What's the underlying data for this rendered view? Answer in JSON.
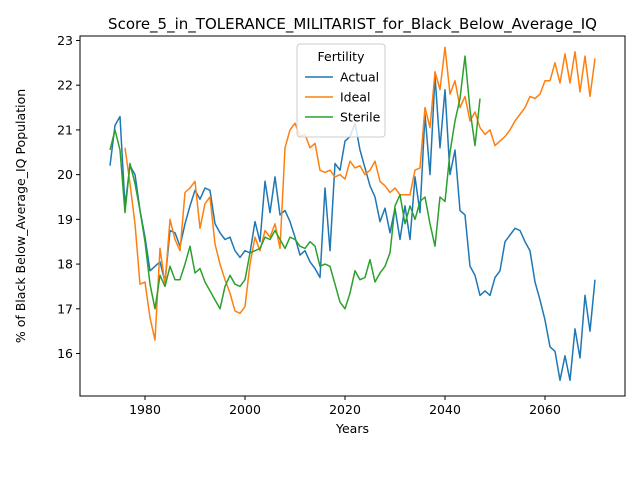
{
  "chart_data": {
    "type": "line",
    "title": "Score_5_in_TOLERANCE_MILITARIST_for_Black_Below_Average_IQ",
    "xlabel": "Years",
    "ylabel": "% of Black Below_Average_IQ Population",
    "xlim": [
      1967,
      2076
    ],
    "ylim": [
      15.05,
      23.1
    ],
    "xticks": [
      1980,
      2000,
      2020,
      2040,
      2060
    ],
    "yticks": [
      16,
      17,
      18,
      19,
      20,
      21,
      22,
      23
    ],
    "grid": false,
    "legend": {
      "title": "Fertility",
      "placement": "upper center"
    },
    "series": [
      {
        "name": "Actual",
        "color": "#1f77b4",
        "points": [
          [
            1973,
            20.2
          ],
          [
            1974,
            21.1
          ],
          [
            1975,
            21.3
          ],
          [
            1976,
            19.3
          ],
          [
            1977,
            20.2
          ],
          [
            1978,
            20.0
          ],
          [
            1979,
            19.2
          ],
          [
            1980,
            18.6
          ],
          [
            1981,
            17.85
          ],
          [
            1982,
            17.95
          ],
          [
            1983,
            18.05
          ],
          [
            1984,
            17.6
          ],
          [
            1985,
            18.75
          ],
          [
            1986,
            18.7
          ],
          [
            1987,
            18.4
          ],
          [
            1988,
            18.9
          ],
          [
            1989,
            19.3
          ],
          [
            1990,
            19.65
          ],
          [
            1991,
            19.45
          ],
          [
            1992,
            19.7
          ],
          [
            1993,
            19.65
          ],
          [
            1994,
            18.9
          ],
          [
            1995,
            18.7
          ],
          [
            1996,
            18.55
          ],
          [
            1997,
            18.6
          ],
          [
            1998,
            18.3
          ],
          [
            1999,
            18.15
          ],
          [
            2000,
            18.3
          ],
          [
            2001,
            18.25
          ],
          [
            2002,
            18.95
          ],
          [
            2003,
            18.5
          ],
          [
            2004,
            19.85
          ],
          [
            2005,
            19.15
          ],
          [
            2006,
            19.95
          ],
          [
            2007,
            19.1
          ],
          [
            2008,
            19.2
          ],
          [
            2009,
            18.95
          ],
          [
            2010,
            18.6
          ],
          [
            2011,
            18.2
          ],
          [
            2012,
            18.3
          ],
          [
            2013,
            18.05
          ],
          [
            2014,
            17.9
          ],
          [
            2015,
            17.7
          ],
          [
            2016,
            19.7
          ],
          [
            2017,
            18.3
          ],
          [
            2018,
            20.25
          ],
          [
            2019,
            20.1
          ],
          [
            2020,
            20.75
          ],
          [
            2021,
            20.85
          ],
          [
            2022,
            21.15
          ],
          [
            2023,
            20.55
          ],
          [
            2024,
            20.15
          ],
          [
            2025,
            19.75
          ],
          [
            2026,
            19.5
          ],
          [
            2027,
            18.95
          ],
          [
            2028,
            19.25
          ],
          [
            2029,
            18.7
          ],
          [
            2030,
            19.25
          ],
          [
            2031,
            18.55
          ],
          [
            2032,
            19.3
          ],
          [
            2033,
            18.55
          ],
          [
            2034,
            19.95
          ],
          [
            2035,
            19.15
          ],
          [
            2036,
            21.35
          ],
          [
            2037,
            20.0
          ],
          [
            2038,
            22.2
          ],
          [
            2039,
            20.6
          ],
          [
            2040,
            21.9
          ],
          [
            2041,
            20.0
          ],
          [
            2042,
            20.55
          ],
          [
            2043,
            19.2
          ],
          [
            2044,
            19.1
          ],
          [
            2045,
            17.95
          ],
          [
            2046,
            17.75
          ],
          [
            2047,
            17.3
          ],
          [
            2048,
            17.4
          ],
          [
            2049,
            17.3
          ],
          [
            2050,
            17.7
          ],
          [
            2051,
            17.85
          ],
          [
            2052,
            18.5
          ],
          [
            2053,
            18.65
          ],
          [
            2054,
            18.8
          ],
          [
            2055,
            18.75
          ],
          [
            2056,
            18.5
          ],
          [
            2057,
            18.3
          ],
          [
            2058,
            17.6
          ],
          [
            2059,
            17.2
          ],
          [
            2060,
            16.75
          ],
          [
            2061,
            16.15
          ],
          [
            2062,
            16.05
          ],
          [
            2063,
            15.4
          ],
          [
            2064,
            15.95
          ],
          [
            2065,
            15.4
          ],
          [
            2066,
            16.55
          ],
          [
            2067,
            15.9
          ],
          [
            2068,
            17.3
          ],
          [
            2069,
            16.5
          ],
          [
            2070,
            17.65
          ]
        ]
      },
      {
        "name": "Ideal",
        "color": "#ff7f0e",
        "points": [
          [
            1976,
            20.6
          ],
          [
            1977,
            19.8
          ],
          [
            1978,
            18.9
          ],
          [
            1979,
            17.55
          ],
          [
            1980,
            17.6
          ],
          [
            1981,
            16.8
          ],
          [
            1982,
            16.3
          ],
          [
            1983,
            18.35
          ],
          [
            1984,
            17.55
          ],
          [
            1985,
            19.0
          ],
          [
            1986,
            18.55
          ],
          [
            1987,
            18.3
          ],
          [
            1988,
            19.6
          ],
          [
            1989,
            19.7
          ],
          [
            1990,
            19.85
          ],
          [
            1991,
            18.8
          ],
          [
            1992,
            19.35
          ],
          [
            1993,
            19.5
          ],
          [
            1994,
            18.45
          ],
          [
            1995,
            18.0
          ],
          [
            1996,
            17.65
          ],
          [
            1997,
            17.35
          ],
          [
            1998,
            16.95
          ],
          [
            1999,
            16.9
          ],
          [
            2000,
            17.05
          ],
          [
            2001,
            18.0
          ],
          [
            2002,
            18.6
          ],
          [
            2003,
            18.3
          ],
          [
            2004,
            18.75
          ],
          [
            2005,
            18.6
          ],
          [
            2006,
            18.9
          ],
          [
            2007,
            18.35
          ],
          [
            2008,
            20.6
          ],
          [
            2009,
            21.0
          ],
          [
            2010,
            21.15
          ],
          [
            2011,
            20.85
          ],
          [
            2012,
            20.9
          ],
          [
            2013,
            20.6
          ],
          [
            2014,
            20.7
          ],
          [
            2015,
            20.1
          ],
          [
            2016,
            20.05
          ],
          [
            2017,
            20.1
          ],
          [
            2018,
            19.95
          ],
          [
            2019,
            20.0
          ],
          [
            2020,
            19.9
          ],
          [
            2021,
            20.3
          ],
          [
            2022,
            20.15
          ],
          [
            2023,
            20.2
          ],
          [
            2024,
            20.0
          ],
          [
            2025,
            20.1
          ],
          [
            2026,
            20.3
          ],
          [
            2027,
            19.85
          ],
          [
            2028,
            19.75
          ],
          [
            2029,
            19.6
          ],
          [
            2030,
            19.7
          ],
          [
            2031,
            19.55
          ],
          [
            2032,
            19.55
          ],
          [
            2033,
            19.55
          ],
          [
            2034,
            20.1
          ],
          [
            2035,
            20.15
          ],
          [
            2036,
            21.5
          ],
          [
            2037,
            21.05
          ],
          [
            2038,
            22.3
          ],
          [
            2039,
            21.9
          ],
          [
            2040,
            22.85
          ],
          [
            2041,
            21.8
          ],
          [
            2042,
            22.1
          ],
          [
            2043,
            21.5
          ],
          [
            2044,
            21.75
          ],
          [
            2045,
            21.2
          ],
          [
            2046,
            21.4
          ],
          [
            2047,
            21.05
          ],
          [
            2048,
            20.9
          ],
          [
            2049,
            21.0
          ],
          [
            2050,
            20.65
          ],
          [
            2051,
            20.75
          ],
          [
            2052,
            20.85
          ],
          [
            2053,
            21.0
          ],
          [
            2054,
            21.2
          ],
          [
            2055,
            21.35
          ],
          [
            2056,
            21.5
          ],
          [
            2057,
            21.75
          ],
          [
            2058,
            21.7
          ],
          [
            2059,
            21.8
          ],
          [
            2060,
            22.1
          ],
          [
            2061,
            22.1
          ],
          [
            2062,
            22.5
          ],
          [
            2063,
            22.05
          ],
          [
            2064,
            22.7
          ],
          [
            2065,
            22.05
          ],
          [
            2066,
            22.75
          ],
          [
            2067,
            21.85
          ],
          [
            2068,
            22.65
          ],
          [
            2069,
            21.75
          ],
          [
            2070,
            22.6
          ]
        ]
      },
      {
        "name": "Sterile",
        "color": "#2ca02c",
        "points": [
          [
            1973,
            20.55
          ],
          [
            1974,
            21.0
          ],
          [
            1975,
            20.55
          ],
          [
            1976,
            19.15
          ],
          [
            1977,
            20.25
          ],
          [
            1978,
            19.8
          ],
          [
            1979,
            19.2
          ],
          [
            1980,
            18.5
          ],
          [
            1981,
            17.55
          ],
          [
            1982,
            17.0
          ],
          [
            1983,
            17.75
          ],
          [
            1984,
            17.5
          ],
          [
            1985,
            17.95
          ],
          [
            1986,
            17.65
          ],
          [
            1987,
            17.65
          ],
          [
            1988,
            18.0
          ],
          [
            1989,
            18.4
          ],
          [
            1990,
            17.8
          ],
          [
            1991,
            17.9
          ],
          [
            1992,
            17.6
          ],
          [
            1993,
            17.4
          ],
          [
            1994,
            17.2
          ],
          [
            1995,
            17.0
          ],
          [
            1996,
            17.5
          ],
          [
            1997,
            17.75
          ],
          [
            1998,
            17.55
          ],
          [
            1999,
            17.5
          ],
          [
            2000,
            17.65
          ],
          [
            2001,
            18.25
          ],
          [
            2002,
            18.3
          ],
          [
            2003,
            18.35
          ],
          [
            2004,
            18.6
          ],
          [
            2005,
            18.55
          ],
          [
            2006,
            18.75
          ],
          [
            2007,
            18.55
          ],
          [
            2008,
            18.35
          ],
          [
            2009,
            18.6
          ],
          [
            2010,
            18.55
          ],
          [
            2011,
            18.4
          ],
          [
            2012,
            18.35
          ],
          [
            2013,
            18.5
          ],
          [
            2014,
            18.4
          ],
          [
            2015,
            17.95
          ],
          [
            2016,
            18.0
          ],
          [
            2017,
            17.95
          ],
          [
            2018,
            17.55
          ],
          [
            2019,
            17.15
          ],
          [
            2020,
            17.0
          ],
          [
            2021,
            17.35
          ],
          [
            2022,
            17.85
          ],
          [
            2023,
            17.65
          ],
          [
            2024,
            17.7
          ],
          [
            2025,
            18.1
          ],
          [
            2026,
            17.6
          ],
          [
            2027,
            17.8
          ],
          [
            2028,
            17.95
          ],
          [
            2029,
            18.25
          ],
          [
            2030,
            19.3
          ],
          [
            2031,
            19.55
          ],
          [
            2032,
            18.9
          ],
          [
            2033,
            19.3
          ],
          [
            2034,
            19.0
          ],
          [
            2035,
            19.4
          ],
          [
            2036,
            19.5
          ],
          [
            2037,
            18.9
          ],
          [
            2038,
            18.4
          ],
          [
            2039,
            19.5
          ],
          [
            2040,
            19.4
          ],
          [
            2041,
            20.5
          ],
          [
            2042,
            21.2
          ],
          [
            2043,
            21.7
          ],
          [
            2044,
            22.65
          ],
          [
            2045,
            21.45
          ],
          [
            2046,
            20.65
          ],
          [
            2047,
            21.7
          ]
        ]
      }
    ]
  }
}
